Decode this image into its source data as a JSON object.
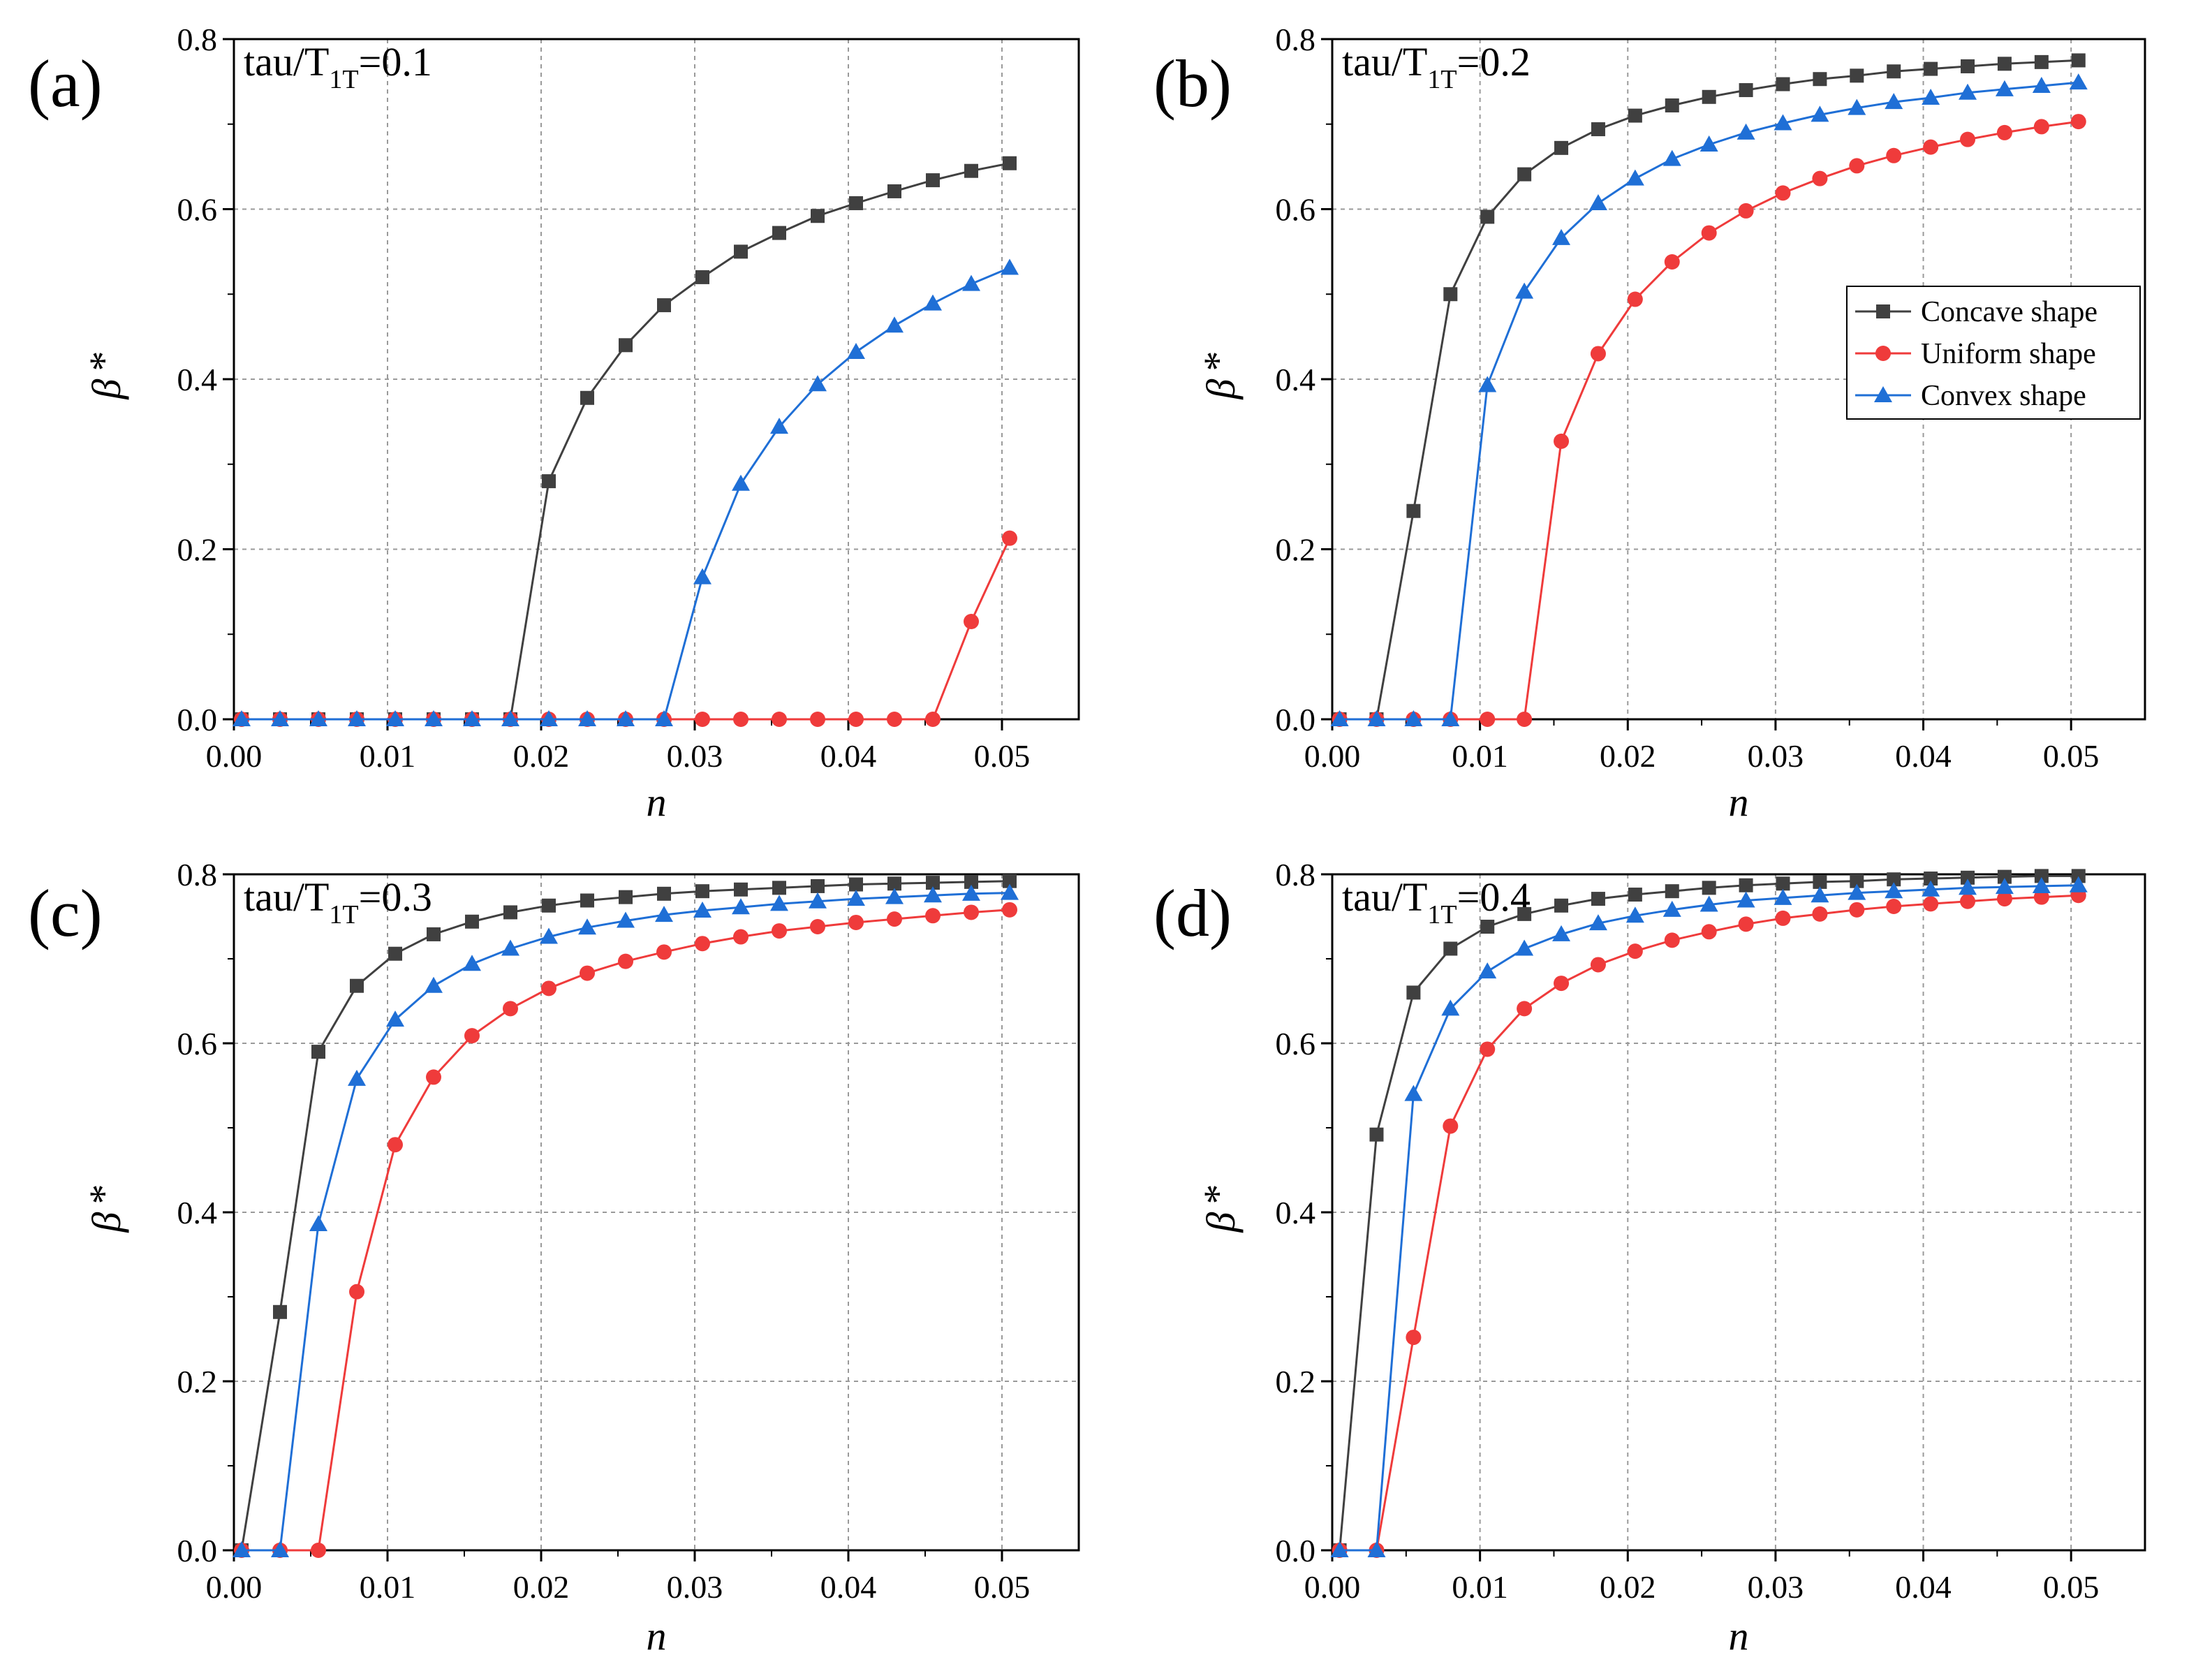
{
  "colors": {
    "concave": "#404040",
    "uniform": "#ef3b3b",
    "convex": "#1f6fd6",
    "grid": "#9a9a9a",
    "axis": "#000000"
  },
  "legend": {
    "entries": [
      {
        "name": "Concave shape",
        "marker": "square",
        "color": "#404040"
      },
      {
        "name": "Uniform shape",
        "marker": "circle",
        "color": "#ef3b3b"
      },
      {
        "name": "Convex shape",
        "marker": "triangle",
        "color": "#1f6fd6"
      }
    ]
  },
  "chart_data": [
    {
      "type": "line",
      "panel_label": "(a)",
      "title_main": "tau/T",
      "title_sub": "1T",
      "title_value": "=0.1",
      "xlabel": "n",
      "ylabel_main": "β",
      "ylabel_sup": "*",
      "xlim": [
        0,
        0.055
      ],
      "ylim": [
        0,
        0.8
      ],
      "xticks": [
        "0.00",
        "0.01",
        "0.02",
        "0.03",
        "0.04",
        "0.05"
      ],
      "yticks": [
        "0.0",
        "0.2",
        "0.4",
        "0.6",
        "0.8"
      ],
      "grid": true,
      "legend": false,
      "x": [
        0.0005,
        0.003,
        0.0055,
        0.008,
        0.0105,
        0.013,
        0.0155,
        0.018,
        0.0205,
        0.023,
        0.0255,
        0.028,
        0.0305,
        0.033,
        0.0355,
        0.038,
        0.0405,
        0.043,
        0.0455,
        0.048,
        0.0505
      ],
      "series": [
        {
          "name": "Concave shape",
          "values": [
            0,
            0,
            0,
            0,
            0,
            0,
            0,
            0,
            0.28,
            0.378,
            0.44,
            0.487,
            0.52,
            0.55,
            0.572,
            0.592,
            0.607,
            0.621,
            0.634,
            0.645,
            0.654
          ]
        },
        {
          "name": "Uniform shape",
          "values": [
            0,
            0,
            0,
            0,
            0,
            0,
            0,
            0,
            0,
            0,
            0,
            0,
            0,
            0,
            0,
            0,
            0,
            0,
            0,
            0.115,
            0.213
          ]
        },
        {
          "name": "Convex shape",
          "values": [
            0,
            0,
            0,
            0,
            0,
            0,
            0,
            0,
            0,
            0,
            0,
            0,
            0.167,
            0.277,
            0.344,
            0.394,
            0.432,
            0.463,
            0.489,
            0.512,
            0.531
          ]
        }
      ]
    },
    {
      "type": "line",
      "panel_label": "(b)",
      "title_main": "tau/T",
      "title_sub": "1T",
      "title_value": "=0.2",
      "xlabel": "n",
      "ylabel_main": "β",
      "ylabel_sup": "*",
      "xlim": [
        0,
        0.055
      ],
      "ylim": [
        0,
        0.8
      ],
      "xticks": [
        "0.00",
        "0.01",
        "0.02",
        "0.03",
        "0.04",
        "0.05"
      ],
      "yticks": [
        "0.0",
        "0.2",
        "0.4",
        "0.6",
        "0.8"
      ],
      "grid": true,
      "legend": true,
      "x": [
        0.0005,
        0.003,
        0.0055,
        0.008,
        0.0105,
        0.013,
        0.0155,
        0.018,
        0.0205,
        0.023,
        0.0255,
        0.028,
        0.0305,
        0.033,
        0.0355,
        0.038,
        0.0405,
        0.043,
        0.0455,
        0.048,
        0.0505
      ],
      "series": [
        {
          "name": "Concave shape",
          "values": [
            0,
            0,
            0.245,
            0.5,
            0.591,
            0.641,
            0.672,
            0.694,
            0.71,
            0.722,
            0.732,
            0.74,
            0.747,
            0.753,
            0.757,
            0.762,
            0.765,
            0.768,
            0.771,
            0.773,
            0.775
          ]
        },
        {
          "name": "Uniform shape",
          "values": [
            0,
            0,
            0,
            0,
            0,
            0,
            0.327,
            0.43,
            0.494,
            0.538,
            0.572,
            0.598,
            0.619,
            0.636,
            0.651,
            0.663,
            0.673,
            0.682,
            0.69,
            0.697,
            0.703
          ]
        },
        {
          "name": "Convex shape",
          "values": [
            0,
            0,
            0,
            0,
            0.393,
            0.503,
            0.566,
            0.607,
            0.636,
            0.659,
            0.676,
            0.69,
            0.701,
            0.711,
            0.719,
            0.726,
            0.731,
            0.737,
            0.741,
            0.745,
            0.749
          ]
        }
      ]
    },
    {
      "type": "line",
      "panel_label": "(c)",
      "title_main": "tau/T",
      "title_sub": "1T",
      "title_value": "=0.3",
      "xlabel": "n",
      "ylabel_main": "β",
      "ylabel_sup": "*",
      "xlim": [
        0,
        0.055
      ],
      "ylim": [
        0,
        0.8
      ],
      "xticks": [
        "0.00",
        "0.01",
        "0.02",
        "0.03",
        "0.04",
        "0.05"
      ],
      "yticks": [
        "0.0",
        "0.2",
        "0.4",
        "0.6",
        "0.8"
      ],
      "grid": true,
      "legend": false,
      "x": [
        0.0005,
        0.003,
        0.0055,
        0.008,
        0.0105,
        0.013,
        0.0155,
        0.018,
        0.0205,
        0.023,
        0.0255,
        0.028,
        0.0305,
        0.033,
        0.0355,
        0.038,
        0.0405,
        0.043,
        0.0455,
        0.048,
        0.0505
      ],
      "series": [
        {
          "name": "Concave shape",
          "values": [
            0,
            0.282,
            0.59,
            0.668,
            0.706,
            0.729,
            0.744,
            0.755,
            0.763,
            0.769,
            0.773,
            0.777,
            0.78,
            0.782,
            0.784,
            0.786,
            0.788,
            0.789,
            0.79,
            0.791,
            0.792
          ]
        },
        {
          "name": "Uniform shape",
          "values": [
            0,
            0,
            0,
            0.306,
            0.48,
            0.56,
            0.609,
            0.641,
            0.665,
            0.683,
            0.697,
            0.708,
            0.718,
            0.726,
            0.733,
            0.738,
            0.743,
            0.747,
            0.751,
            0.755,
            0.758
          ]
        },
        {
          "name": "Convex shape",
          "values": [
            0,
            0,
            0.386,
            0.558,
            0.628,
            0.668,
            0.694,
            0.712,
            0.726,
            0.737,
            0.745,
            0.752,
            0.757,
            0.761,
            0.765,
            0.768,
            0.771,
            0.773,
            0.775,
            0.777,
            0.778
          ]
        }
      ]
    },
    {
      "type": "line",
      "panel_label": "(d)",
      "title_main": "tau/T",
      "title_sub": "1T",
      "title_value": "=0.4",
      "xlabel": "n",
      "ylabel_main": "β",
      "ylabel_sup": "*",
      "xlim": [
        0,
        0.055
      ],
      "ylim": [
        0,
        0.8
      ],
      "xticks": [
        "0.00",
        "0.01",
        "0.02",
        "0.03",
        "0.04",
        "0.05"
      ],
      "yticks": [
        "0.0",
        "0.2",
        "0.4",
        "0.6",
        "0.8"
      ],
      "grid": true,
      "legend": false,
      "x": [
        0.0005,
        0.003,
        0.0055,
        0.008,
        0.0105,
        0.013,
        0.0155,
        0.018,
        0.0205,
        0.023,
        0.0255,
        0.028,
        0.0305,
        0.033,
        0.0355,
        0.038,
        0.0405,
        0.043,
        0.0455,
        0.048,
        0.0505
      ],
      "series": [
        {
          "name": "Concave shape",
          "values": [
            0,
            0.492,
            0.66,
            0.712,
            0.738,
            0.753,
            0.763,
            0.771,
            0.776,
            0.78,
            0.784,
            0.787,
            0.789,
            0.791,
            0.792,
            0.794,
            0.795,
            0.796,
            0.797,
            0.798,
            0.798
          ]
        },
        {
          "name": "Uniform shape",
          "values": [
            0,
            0,
            0.252,
            0.502,
            0.593,
            0.641,
            0.671,
            0.693,
            0.709,
            0.722,
            0.732,
            0.741,
            0.748,
            0.753,
            0.758,
            0.762,
            0.765,
            0.768,
            0.771,
            0.773,
            0.775
          ]
        },
        {
          "name": "Convex shape",
          "values": [
            0,
            0,
            0.54,
            0.641,
            0.685,
            0.712,
            0.729,
            0.742,
            0.751,
            0.758,
            0.764,
            0.769,
            0.772,
            0.775,
            0.778,
            0.78,
            0.782,
            0.784,
            0.785,
            0.786,
            0.787
          ]
        }
      ]
    }
  ]
}
